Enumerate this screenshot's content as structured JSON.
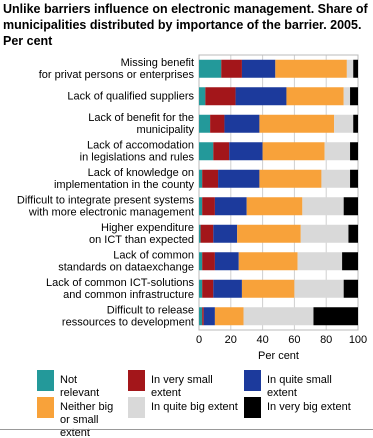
{
  "chart_data": {
    "type": "bar",
    "orientation": "horizontal",
    "stacked": true,
    "title": "Unlike barriers influence on electronic management. Share of municipalities distributed by importance of the barrier. 2005. Per cent",
    "xlabel": "Per cent",
    "categories": [
      [
        "Missing benefit",
        "for privat persons or enterprises"
      ],
      [
        "Lack of qualified suppliers"
      ],
      [
        "Lack of benefit for the",
        "municipality"
      ],
      [
        "Lack of accomodation",
        "in legislations and rules"
      ],
      [
        "Lack of knowledge on",
        "implementation in the county"
      ],
      [
        "Difficult to integrate present systems",
        "with more electronic management"
      ],
      [
        "Higher expenditure",
        "on ICT than expected"
      ],
      [
        "Lack of common",
        "standards on dataexchange"
      ],
      [
        "Lack of common ICT-solutions",
        "and common infrastructure"
      ],
      [
        "Difficult to release",
        "ressources to development"
      ]
    ],
    "series": [
      {
        "name": "Not relevant",
        "color": "#23999a",
        "values": [
          14,
          4,
          7,
          9,
          2,
          2,
          1,
          2,
          2,
          2
        ]
      },
      {
        "name": "In very small extent",
        "color": "#a3161a",
        "values": [
          13,
          19,
          9,
          10,
          10,
          8,
          8,
          8,
          7,
          1
        ]
      },
      {
        "name": "In quite small extent",
        "color": "#1c3a9c",
        "values": [
          21,
          32,
          22,
          21,
          26,
          20,
          15,
          15,
          18,
          7
        ]
      },
      {
        "name": "Neither big or small extent",
        "color": "#f8a23a",
        "values": [
          45,
          36,
          47,
          39,
          39,
          35,
          40,
          37,
          33,
          18
        ]
      },
      {
        "name": "In quite big extent",
        "color": "#d9d9d9",
        "values": [
          4,
          4,
          12,
          16,
          18,
          26,
          30,
          28,
          31,
          44
        ]
      },
      {
        "name": "In very big extent",
        "color": "#000000",
        "values": [
          3,
          5,
          3,
          5,
          5,
          9,
          6,
          10,
          9,
          28
        ]
      }
    ],
    "xlim": [
      0,
      100
    ],
    "xticks": [
      0,
      20,
      40,
      60,
      80,
      100
    ],
    "grid": true
  }
}
